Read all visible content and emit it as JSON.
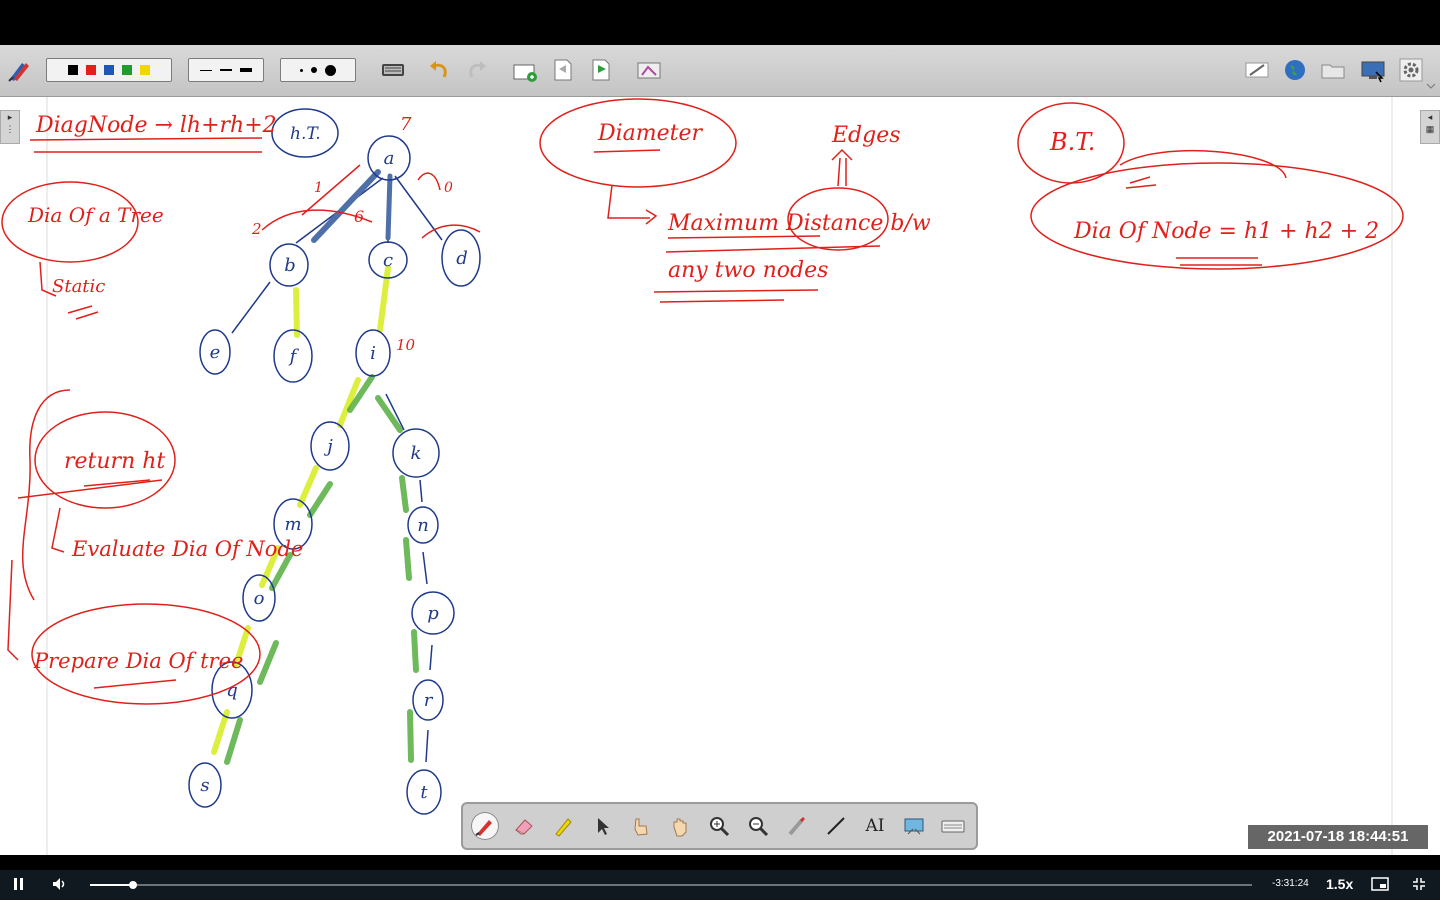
{
  "toolbar": {
    "colors": [
      "#000000",
      "#e0201b",
      "#1f57b8",
      "#1f9c2c",
      "#f2d600"
    ],
    "line_widths_label": "line widths",
    "dot_sizes_label": "dot sizes"
  },
  "whiteboard": {
    "labels": {
      "diag_node": "DiagNode → lh+rh+2",
      "ht": "h.T.",
      "diag_a_tree": "Dia Of a Tree",
      "static": "Static",
      "diameter": "Diameter",
      "edges": "Edges",
      "maximum_distance": "Maximum Distance b/w",
      "any_two_nodes": "any two nodes",
      "bt": "B.T.",
      "dia_of_node_formula": "Dia Of Node = h1 + h2 + 2",
      "return_ht": "return ht",
      "evaluate": "Evaluate Dia Of Node",
      "prepare": "Prepare Dia Of tree"
    },
    "tree_nodes": [
      "a",
      "b",
      "c",
      "d",
      "e",
      "f",
      "i",
      "j",
      "k",
      "m",
      "n",
      "o",
      "p",
      "q",
      "r",
      "s",
      "t"
    ],
    "annotations": {
      "a_mark": "7",
      "b_mark": "2",
      "c_mark": "6",
      "i_mark": "10",
      "left_one": "1",
      "right_zero": "0"
    }
  },
  "float_toolbar": {
    "tools": [
      "pen-tool",
      "eraser-tool",
      "highlighter-tool",
      "select-tool",
      "pointer-hand-tool",
      "pan-tool",
      "zoom-in-tool",
      "zoom-out-tool",
      "laser-tool",
      "line-tool",
      "text-tool",
      "screen-capture-tool",
      "keyboard-tool"
    ],
    "text_tool_label": "AI"
  },
  "timestamp": "2021-07-18  18:44:51",
  "player": {
    "progress": 0.037,
    "time_remaining": "-3:31:24",
    "speed": "1.5x"
  }
}
